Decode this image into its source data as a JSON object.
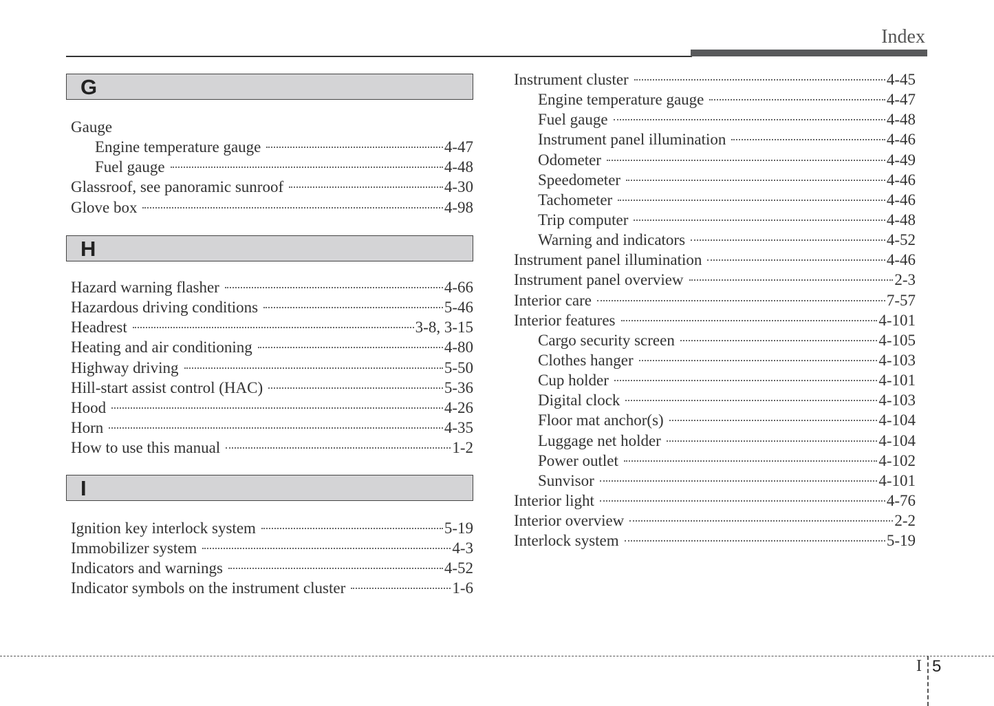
{
  "header": {
    "title": "Index"
  },
  "left_column": [
    {
      "letter": "G",
      "entries": [
        {
          "label": "Gauge",
          "page": "",
          "indent": false
        },
        {
          "label": "Engine temperature gauge",
          "page": "4-47",
          "indent": true
        },
        {
          "label": "Fuel gauge",
          "page": "4-48",
          "indent": true
        },
        {
          "label": "Glassroof, see panoramic sunroof",
          "page": "4-30",
          "indent": false
        },
        {
          "label": "Glove box",
          "page": "4-98",
          "indent": false
        }
      ]
    },
    {
      "letter": "H",
      "entries": [
        {
          "label": "Hazard warning flasher",
          "page": "4-66",
          "indent": false
        },
        {
          "label": "Hazardous driving conditions",
          "page": "5-46",
          "indent": false
        },
        {
          "label": "Headrest",
          "page": "3-8, 3-15",
          "indent": false
        },
        {
          "label": "Heating and air conditioning",
          "page": "4-80",
          "indent": false
        },
        {
          "label": "Highway driving",
          "page": "5-50",
          "indent": false
        },
        {
          "label": "Hill-start assist control (HAC)",
          "page": "5-36",
          "indent": false
        },
        {
          "label": "Hood",
          "page": "4-26",
          "indent": false
        },
        {
          "label": "Horn",
          "page": "4-35",
          "indent": false
        },
        {
          "label": "How to use this manual",
          "page": "1-2",
          "indent": false
        }
      ]
    },
    {
      "letter": "I",
      "entries": [
        {
          "label": "Ignition key interlock system",
          "page": "5-19",
          "indent": false
        },
        {
          "label": "Immobilizer system",
          "page": "4-3",
          "indent": false
        },
        {
          "label": "Indicators and warnings",
          "page": "4-52",
          "indent": false
        },
        {
          "label": "Indicator symbols on the instrument cluster",
          "page": "1-6",
          "indent": false
        }
      ]
    }
  ],
  "right_column": [
    {
      "label": "Instrument cluster",
      "page": "4-45",
      "indent": false
    },
    {
      "label": "Engine temperature gauge",
      "page": "4-47",
      "indent": true
    },
    {
      "label": "Fuel gauge",
      "page": "4-48",
      "indent": true
    },
    {
      "label": "Instrument panel illumination",
      "page": "4-46",
      "indent": true
    },
    {
      "label": "Odometer",
      "page": "4-49",
      "indent": true
    },
    {
      "label": "Speedometer",
      "page": "4-46",
      "indent": true
    },
    {
      "label": "Tachometer",
      "page": "4-46",
      "indent": true
    },
    {
      "label": "Trip computer",
      "page": "4-48",
      "indent": true
    },
    {
      "label": "Warning and indicators",
      "page": "4-52",
      "indent": true
    },
    {
      "label": "Instrument panel illumination",
      "page": "4-46",
      "indent": false
    },
    {
      "label": "Instrument panel overview",
      "page": "2-3",
      "indent": false
    },
    {
      "label": "Interior care",
      "page": "7-57",
      "indent": false
    },
    {
      "label": "Interior features",
      "page": "4-101",
      "indent": false
    },
    {
      "label": "Cargo security screen",
      "page": "4-105",
      "indent": true
    },
    {
      "label": "Clothes hanger",
      "page": "4-103",
      "indent": true
    },
    {
      "label": "Cup holder",
      "page": "4-101",
      "indent": true
    },
    {
      "label": "Digital clock",
      "page": "4-103",
      "indent": true
    },
    {
      "label": "Floor mat anchor(s)",
      "page": "4-104",
      "indent": true
    },
    {
      "label": "Luggage net holder",
      "page": "4-104",
      "indent": true
    },
    {
      "label": "Power outlet",
      "page": "4-102",
      "indent": true
    },
    {
      "label": "Sunvisor",
      "page": "4-101",
      "indent": true
    },
    {
      "label": "Interior light",
      "page": "4-76",
      "indent": false
    },
    {
      "label": "Interior overview",
      "page": "2-2",
      "indent": false
    },
    {
      "label": "Interlock system",
      "page": "5-19",
      "indent": false
    }
  ],
  "footer": {
    "section": "I",
    "page_number": "5"
  }
}
